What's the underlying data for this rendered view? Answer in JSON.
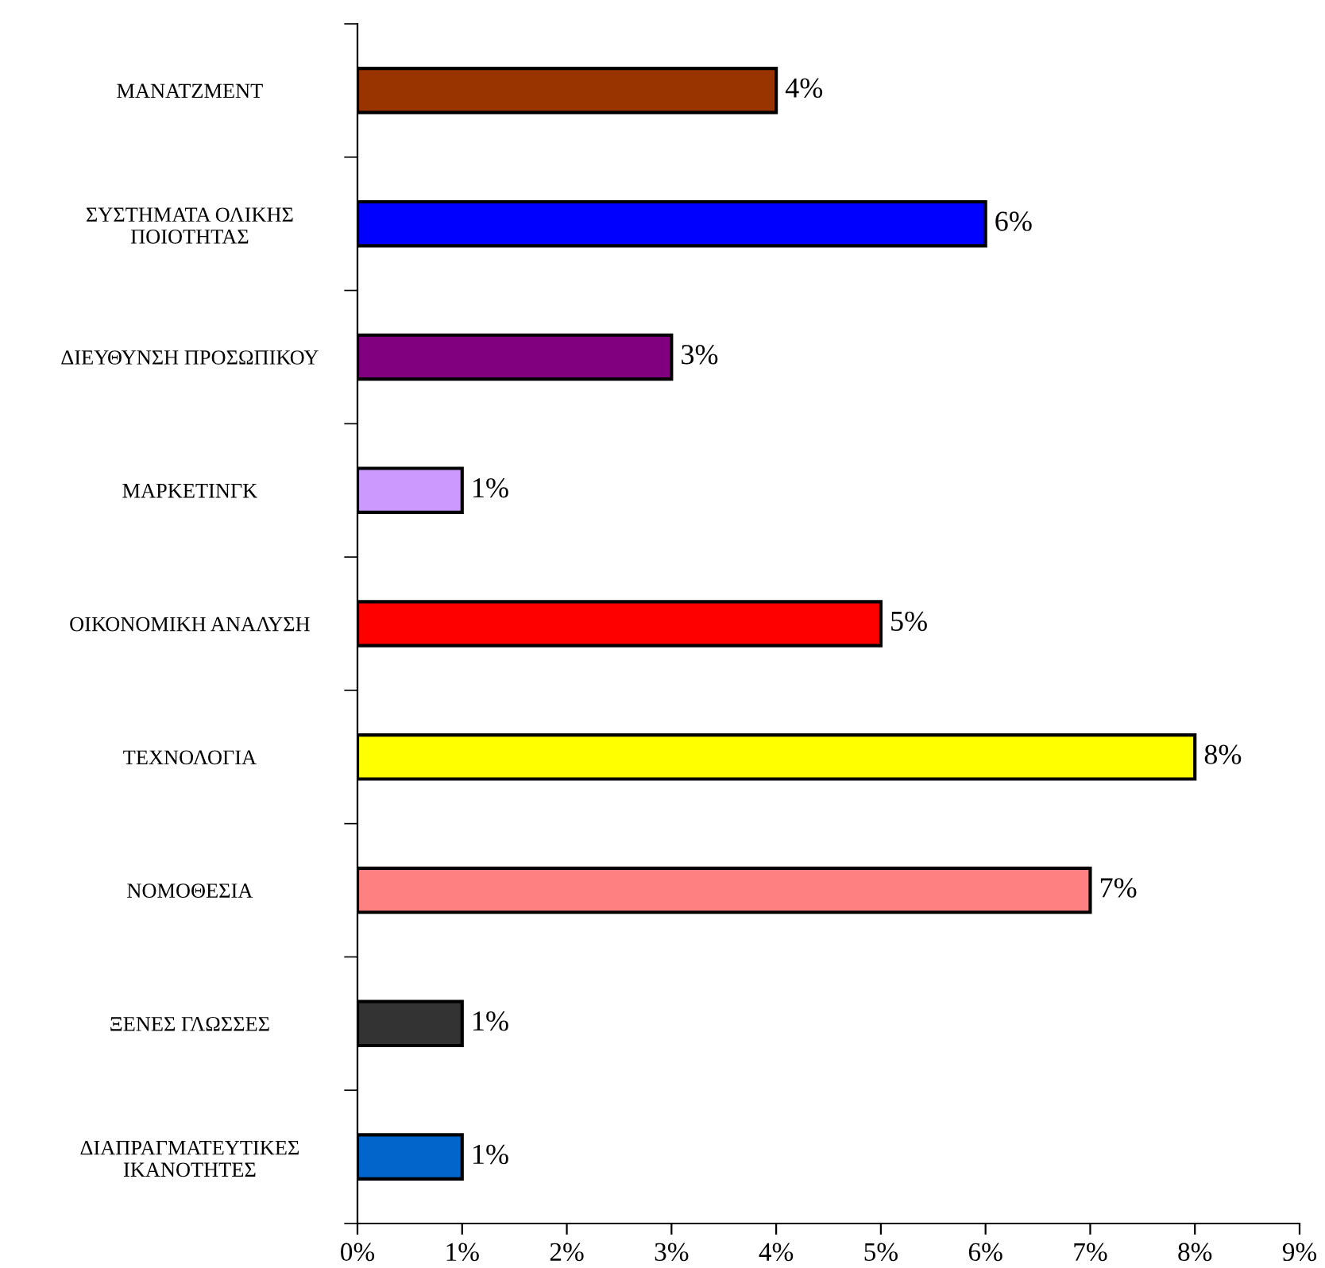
{
  "chart_data": {
    "type": "bar",
    "orientation": "horizontal",
    "categories": [
      "ΜΑΝΑΤΖΜΕΝΤ",
      "ΣΥΣΤΗΜΑΤΑ ΟΛΙΚΗΣ\nΠΟΙΟΤΗΤΑΣ",
      "ΔΙΕΥΘΥΝΣΗ ΠΡΟΣΩΠΙΚΟΥ",
      "ΜΑΡΚΕΤΙΝΓΚ",
      "ΟΙΚΟΝΟΜΙΚΗ ΑΝΑΛΥΣΗ",
      "ΤΕΧΝΟΛΟΓΙΑ",
      "ΝΟΜΟΘΕΣΙΑ",
      "ΞΕΝΕΣ ΓΛΩΣΣΕΣ",
      "ΔΙΑΠΡΑΓΜΑΤΕΥΤΙΚΕΣ\nΙΚΑΝΟΤΗΤΕΣ"
    ],
    "values": [
      4,
      6,
      3,
      1,
      5,
      8,
      7,
      1,
      1
    ],
    "value_labels": [
      "4%",
      "6%",
      "3%",
      "1%",
      "5%",
      "8%",
      "7%",
      "1%",
      "1%"
    ],
    "colors": [
      "#993300",
      "#0000ff",
      "#800080",
      "#cc99ff",
      "#ff0000",
      "#ffff00",
      "#ff8080",
      "#333333",
      "#0066cc"
    ],
    "xlim": [
      0,
      9
    ],
    "xticks": [
      {
        "value": 0,
        "label": "0%"
      },
      {
        "value": 1,
        "label": "1%"
      },
      {
        "value": 2,
        "label": "2%"
      },
      {
        "value": 3,
        "label": "3%"
      },
      {
        "value": 4,
        "label": "4%"
      },
      {
        "value": 5,
        "label": "5%"
      },
      {
        "value": 6,
        "label": "6%"
      },
      {
        "value": 7,
        "label": "7%"
      },
      {
        "value": 8,
        "label": "8%"
      },
      {
        "value": 9,
        "label": "9%"
      }
    ],
    "grid": false,
    "legend": false
  }
}
